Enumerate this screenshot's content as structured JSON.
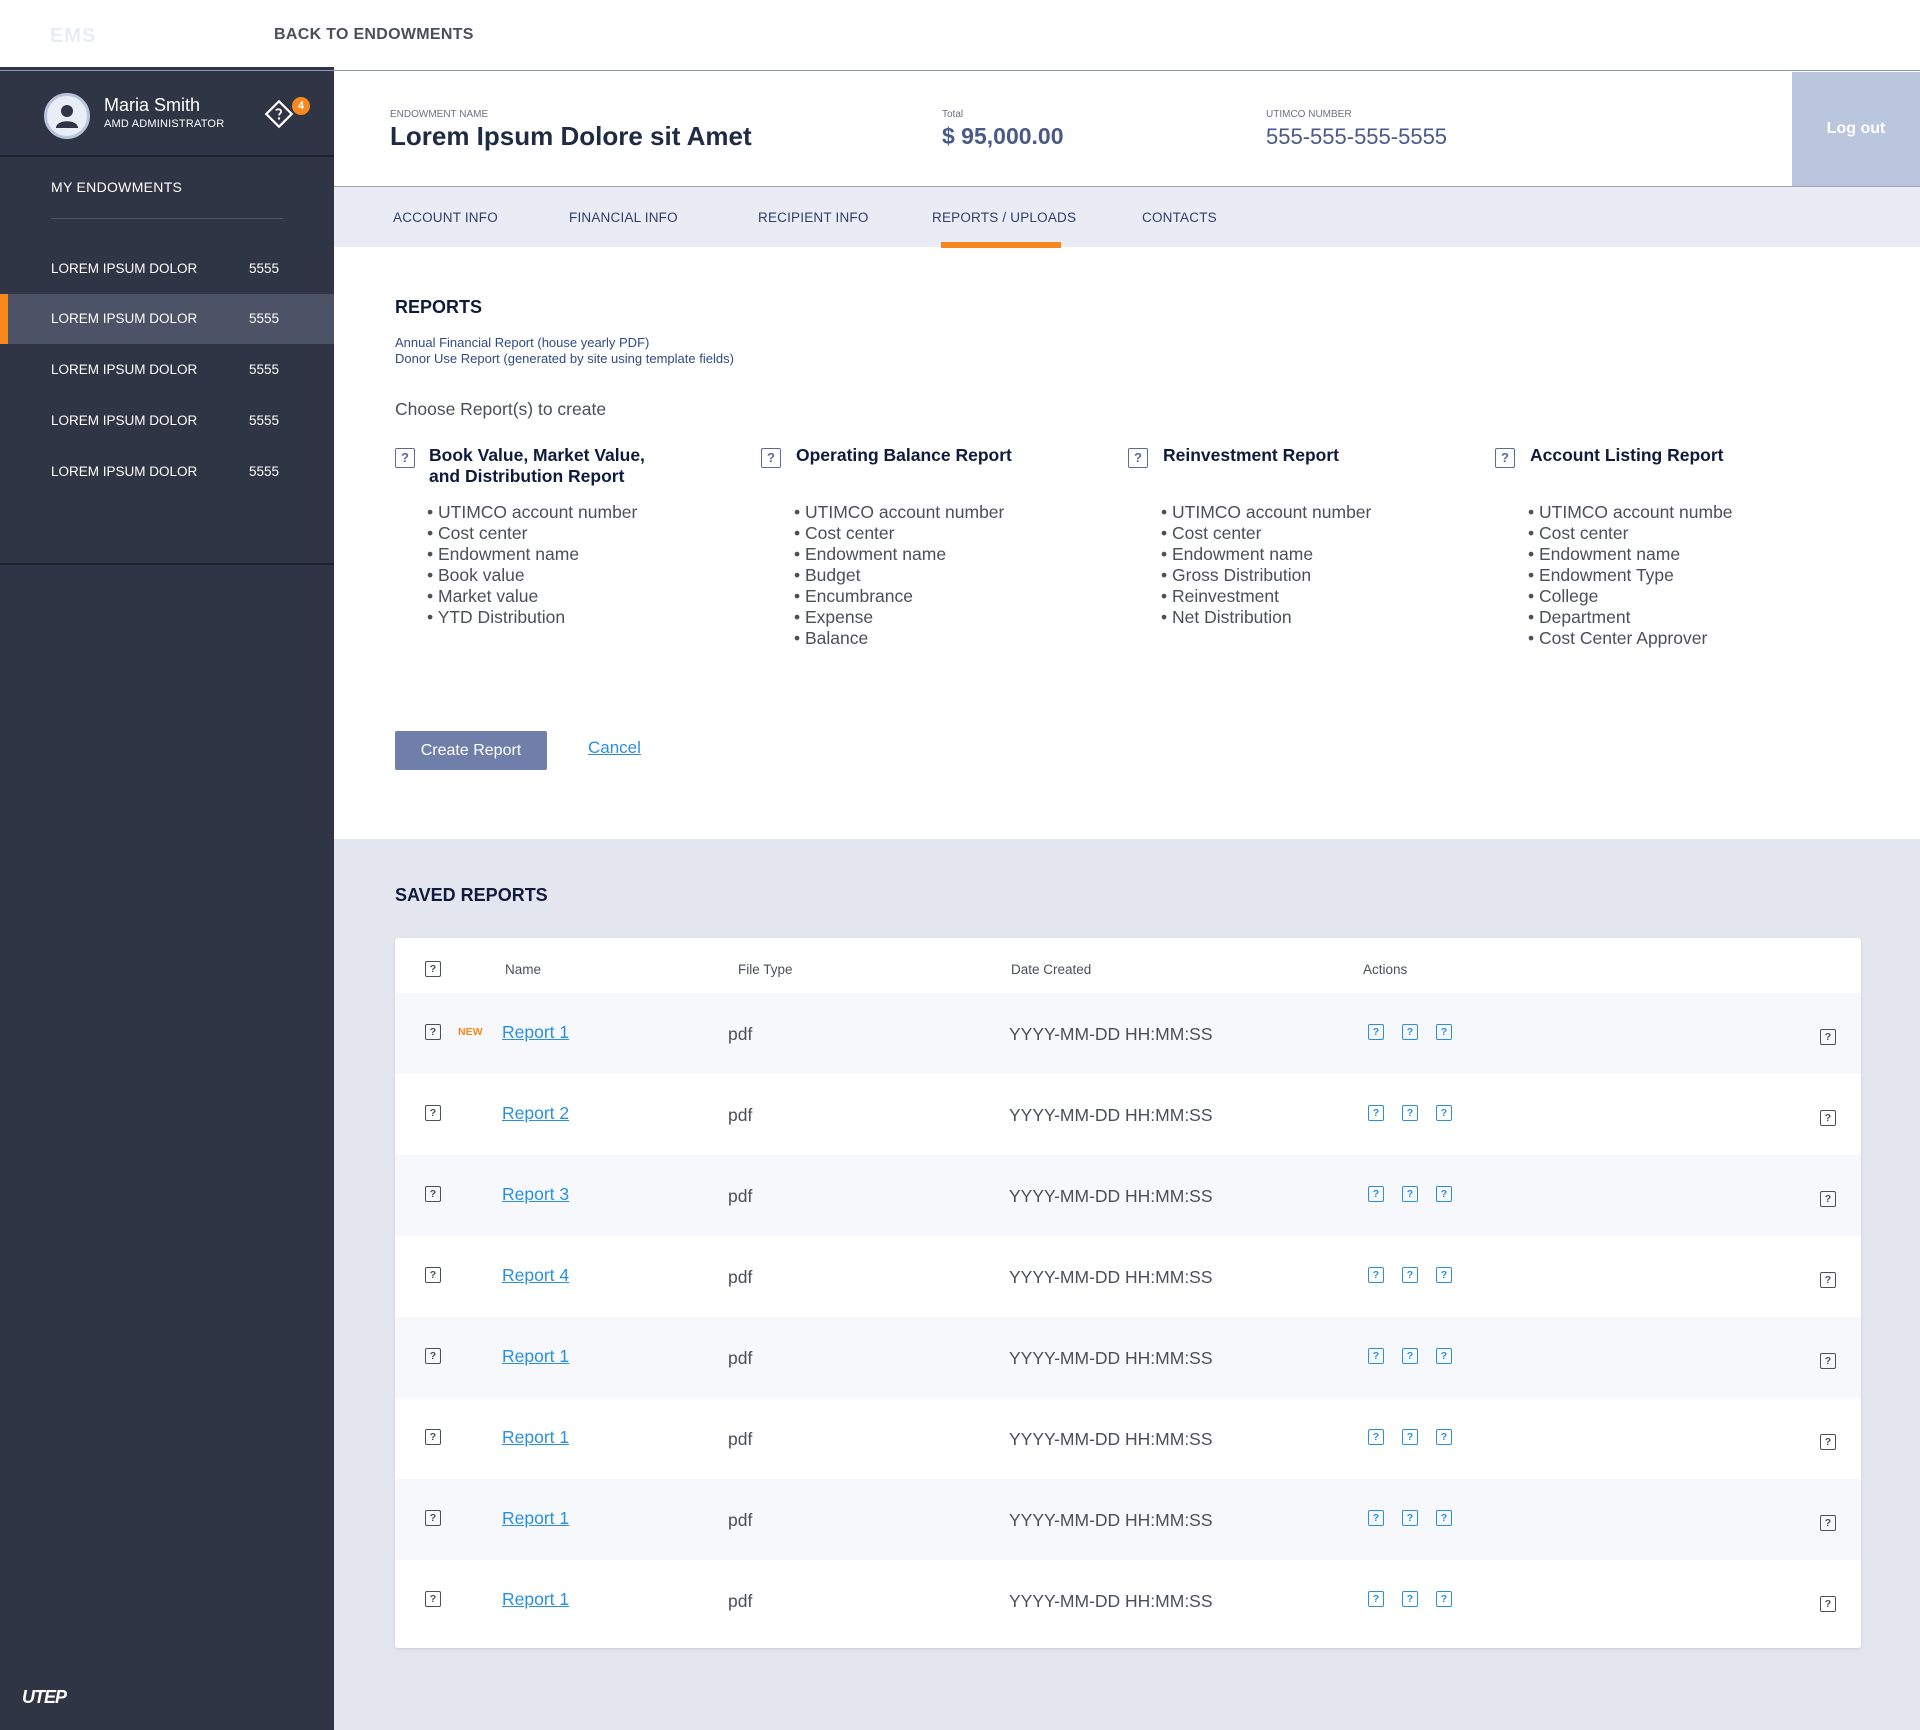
{
  "topbar": {
    "brand": "EMS",
    "back_label": "BACK TO ENDOWMENTS"
  },
  "user": {
    "name": "Maria Smith",
    "role": "AMD ADMINISTRATOR",
    "notification_count": "4"
  },
  "sidebar": {
    "section_title": "MY ENDOWMENTS",
    "items": [
      {
        "label": "LOREM IPSUM DOLOR",
        "num": "5555"
      },
      {
        "label": "LOREM IPSUM DOLOR",
        "num": "5555"
      },
      {
        "label": "LOREM IPSUM DOLOR",
        "num": "5555"
      },
      {
        "label": "LOREM IPSUM DOLOR",
        "num": "5555"
      },
      {
        "label": "LOREM IPSUM DOLOR",
        "num": "5555"
      }
    ],
    "logo": "UTEP"
  },
  "header": {
    "endowment_label": "ENDOWMENT NAME",
    "endowment_name": "Lorem Ipsum Dolore sit Amet",
    "total_label": "Total",
    "total_value": "$ 95,000.00",
    "utimco_label": "UTIMCO NUMBER",
    "utimco_value": "555-555-555-5555",
    "logout_label": "Log out"
  },
  "tabs": [
    {
      "label": "ACCOUNT INFO"
    },
    {
      "label": "FINANCIAL INFO"
    },
    {
      "label": "RECIPIENT INFO"
    },
    {
      "label": "REPORTS / UPLOADS"
    },
    {
      "label": "CONTACTS"
    }
  ],
  "reports": {
    "title": "REPORTS",
    "desc_1": "Annual Financial Report (house yearly PDF)",
    "desc_2": "Donor Use Report (generated by site using template fields)",
    "choose_label": "Choose Report(s) to create",
    "columns": [
      {
        "title_1": "Book Value, Market Value,",
        "title_2": "and Distribution Report",
        "items": [
          "UTIMCO account number",
          "Cost center",
          "Endowment name",
          "Book value",
          "Market value",
          "YTD Distribution"
        ]
      },
      {
        "title_1": "Operating Balance Report",
        "title_2": "",
        "items": [
          "UTIMCO account number",
          "Cost center",
          "Endowment name",
          "Budget",
          "Encumbrance",
          "Expense",
          "Balance"
        ]
      },
      {
        "title_1": "Reinvestment Report",
        "title_2": "",
        "items": [
          "UTIMCO account number",
          "Cost center",
          "Endowment name",
          "Gross Distribution",
          "Reinvestment",
          "Net Distribution"
        ]
      },
      {
        "title_1": "Account Listing Report",
        "title_2": "",
        "items": [
          "UTIMCO account numbe",
          "Cost center",
          "Endowment name",
          "Endowment Type",
          "College",
          "Department",
          "Cost Center Approver"
        ]
      }
    ],
    "create_label": "Create Report",
    "cancel_label": "Cancel"
  },
  "saved": {
    "title": "SAVED REPORTS",
    "headers": {
      "name": "Name",
      "file_type": "File Type",
      "date": "Date Created",
      "actions": "Actions"
    },
    "rows": [
      {
        "badge": "NEW",
        "name": "Report 1",
        "type": "pdf",
        "date": "YYYY-MM-DD HH:MM:SS"
      },
      {
        "badge": "",
        "name": "Report 2",
        "type": "pdf",
        "date": "YYYY-MM-DD HH:MM:SS"
      },
      {
        "badge": "",
        "name": "Report 3",
        "type": "pdf",
        "date": "YYYY-MM-DD HH:MM:SS"
      },
      {
        "badge": "",
        "name": "Report 4",
        "type": "pdf",
        "date": "YYYY-MM-DD HH:MM:SS"
      },
      {
        "badge": "",
        "name": "Report 1",
        "type": "pdf",
        "date": "YYYY-MM-DD HH:MM:SS"
      },
      {
        "badge": "",
        "name": "Report 1",
        "type": "pdf",
        "date": "YYYY-MM-DD HH:MM:SS"
      },
      {
        "badge": "",
        "name": "Report 1",
        "type": "pdf",
        "date": "YYYY-MM-DD HH:MM:SS"
      },
      {
        "badge": "",
        "name": "Report 1",
        "type": "pdf",
        "date": "YYYY-MM-DD HH:MM:SS"
      }
    ]
  },
  "icons": {
    "placeholder": "?",
    "avatar": "user-icon",
    "notification": "notification-diamond-icon"
  },
  "colors": {
    "accent": "#f7881f",
    "sidebar": "#2f3545",
    "link": "#2b8fe0",
    "primary_button": "#6f7fa9"
  }
}
